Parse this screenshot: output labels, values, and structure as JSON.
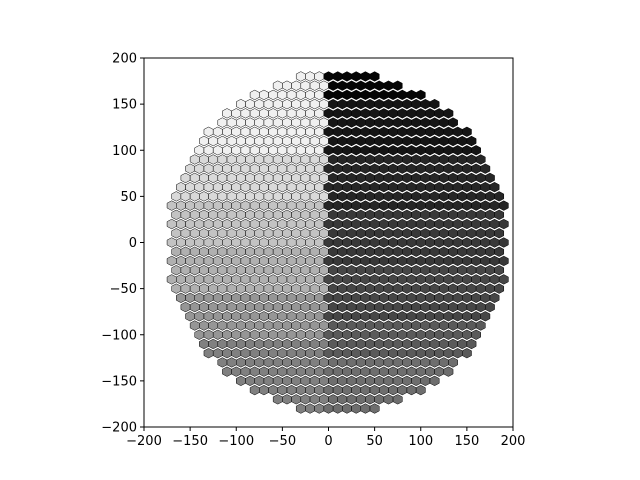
{
  "chart_data": {
    "type": "heatmap",
    "title": "",
    "xlabel": "",
    "ylabel": "",
    "xlim": [
      -200,
      200
    ],
    "ylim": [
      -200,
      200
    ],
    "x_ticks": [
      -200,
      -150,
      -100,
      -50,
      0,
      50,
      100,
      150,
      200
    ],
    "y_ticks": [
      -200,
      -150,
      -100,
      -50,
      0,
      50,
      100,
      150,
      200
    ],
    "x_tick_labels": [
      "−200",
      "−150",
      "−100",
      "−50",
      "0",
      "50",
      "100",
      "150",
      "200"
    ],
    "y_tick_labels": [
      "−200",
      "−150",
      "−100",
      "−50",
      "0",
      "50",
      "100",
      "150",
      "200"
    ],
    "grid": false,
    "hex_grid": {
      "hex_pitch_x": 10,
      "row_pitch_y": 10,
      "center": [
        10,
        0
      ],
      "radius": 185
    },
    "gray_zones": [
      {
        "region": "left, y ≥ 100",
        "gray": "#f0f0f0"
      },
      {
        "region": "left, 50 ≤ y < 100",
        "gray": "#d9d9d9"
      },
      {
        "region": "left, 0 ≤ y < 50",
        "gray": "#c3c3c3"
      },
      {
        "region": "left, -50 ≤ y < 0",
        "gray": "#b0b0b0"
      },
      {
        "region": "left, -100 ≤ y < -50",
        "gray": "#969696"
      },
      {
        "region": "left, y < -100",
        "gray": "#808080"
      },
      {
        "region": "right, y ≥ 160",
        "gray": "#050505"
      },
      {
        "region": "right, 100 ≤ y < 160",
        "gray": "#151515"
      },
      {
        "region": "right, 40 ≤ y < 100",
        "gray": "#262626"
      },
      {
        "region": "right, -20 ≤ y < 40",
        "gray": "#383838"
      },
      {
        "region": "right, -80 ≤ y < -20",
        "gray": "#464646"
      },
      {
        "region": "right, -120 ≤ y < -80",
        "gray": "#5a5a5a"
      },
      {
        "region": "right, y < -120",
        "gray": "#6e6e6e"
      }
    ]
  }
}
